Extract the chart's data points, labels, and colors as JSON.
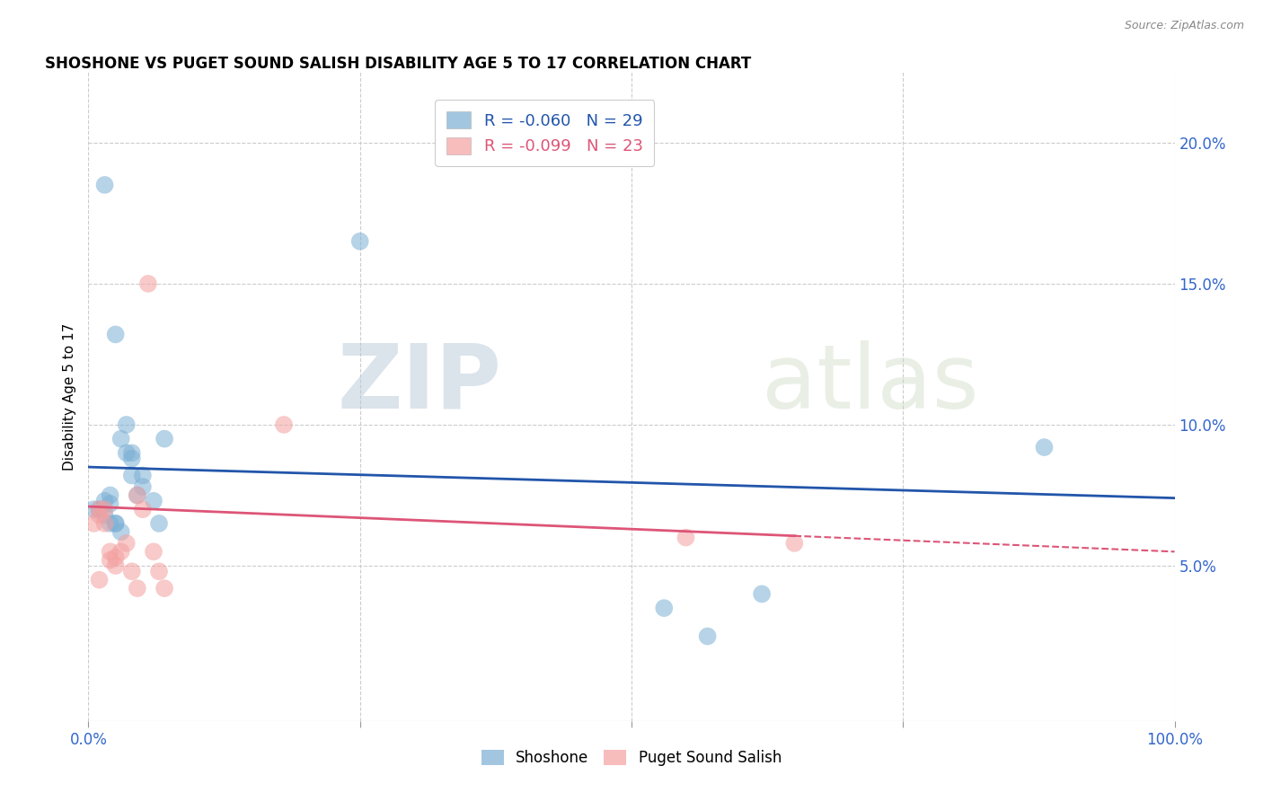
{
  "title": "SHOSHONE VS PUGET SOUND SALISH DISABILITY AGE 5 TO 17 CORRELATION CHART",
  "source": "Source: ZipAtlas.com",
  "ylabel": "Disability Age 5 to 17",
  "xlabel": "",
  "shoshone_r": -0.06,
  "shoshone_n": 29,
  "puget_r": -0.099,
  "puget_n": 23,
  "shoshone_color": "#7BAFD4",
  "puget_color": "#F4A0A0",
  "shoshone_line_color": "#2255AA",
  "puget_line_color": "#DD5577",
  "background_color": "#FFFFFF",
  "grid_color": "#CCCCCC",
  "watermark_zip": "ZIP",
  "watermark_atlas": "atlas",
  "xlim": [
    0,
    1.0
  ],
  "ylim": [
    -0.005,
    0.225
  ],
  "xticks_labeled": [
    0.0,
    1.0
  ],
  "xticks_minor": [
    0.25,
    0.5,
    0.75
  ],
  "yticks": [
    0.05,
    0.1,
    0.15,
    0.2
  ],
  "shoshone_x": [
    0.005,
    0.01,
    0.015,
    0.015,
    0.02,
    0.02,
    0.02,
    0.025,
    0.025,
    0.03,
    0.03,
    0.035,
    0.035,
    0.04,
    0.04,
    0.04,
    0.045,
    0.05,
    0.05,
    0.06,
    0.065,
    0.07,
    0.25,
    0.53,
    0.57,
    0.62,
    0.88,
    0.015,
    0.025
  ],
  "shoshone_y": [
    0.07,
    0.07,
    0.073,
    0.068,
    0.075,
    0.072,
    0.065,
    0.065,
    0.065,
    0.062,
    0.095,
    0.09,
    0.1,
    0.09,
    0.088,
    0.082,
    0.075,
    0.082,
    0.078,
    0.073,
    0.065,
    0.095,
    0.165,
    0.035,
    0.025,
    0.04,
    0.092,
    0.185,
    0.132
  ],
  "puget_x": [
    0.005,
    0.01,
    0.01,
    0.015,
    0.015,
    0.02,
    0.02,
    0.025,
    0.025,
    0.03,
    0.035,
    0.04,
    0.045,
    0.05,
    0.055,
    0.06,
    0.065,
    0.07,
    0.18,
    0.55,
    0.65,
    0.01,
    0.045
  ],
  "puget_y": [
    0.065,
    0.068,
    0.07,
    0.065,
    0.07,
    0.052,
    0.055,
    0.05,
    0.053,
    0.055,
    0.058,
    0.048,
    0.075,
    0.07,
    0.15,
    0.055,
    0.048,
    0.042,
    0.1,
    0.06,
    0.058,
    0.045,
    0.042
  ],
  "blue_trendline_x": [
    0.0,
    1.0
  ],
  "blue_trendline_y": [
    0.085,
    0.074
  ],
  "pink_trendline_x": [
    0.0,
    1.0
  ],
  "pink_trendline_y": [
    0.071,
    0.055
  ]
}
